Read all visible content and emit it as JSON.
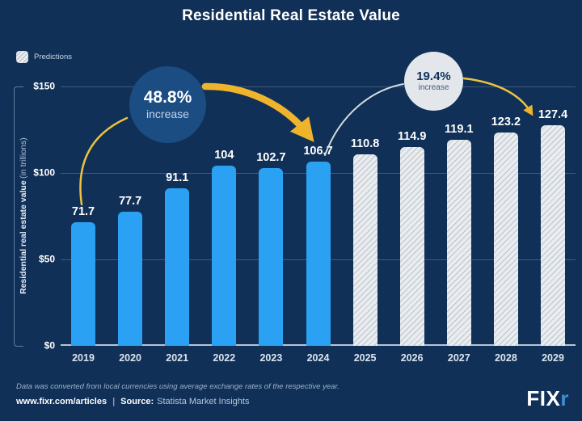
{
  "title": "Residential Real Estate Value",
  "legend": {
    "label": "Predictions"
  },
  "chart_data": {
    "type": "bar",
    "categories": [
      "2019",
      "2020",
      "2021",
      "2022",
      "2023",
      "2024",
      "2025",
      "2026",
      "2027",
      "2028",
      "2029"
    ],
    "values": [
      71.7,
      77.7,
      91.1,
      104,
      102.7,
      106.7,
      110.8,
      114.9,
      119.1,
      123.2,
      127.4
    ],
    "prediction_from_index": 6,
    "series": [
      {
        "name": "Actual",
        "categories": [
          "2019",
          "2020",
          "2021",
          "2022",
          "2023",
          "2024"
        ],
        "values": [
          71.7,
          77.7,
          91.1,
          104,
          102.7,
          106.7
        ]
      },
      {
        "name": "Predictions",
        "categories": [
          "2025",
          "2026",
          "2027",
          "2028",
          "2029"
        ],
        "values": [
          110.8,
          114.9,
          119.1,
          123.2,
          127.4
        ]
      }
    ],
    "title": "Residential Real Estate Value",
    "xlabel": "",
    "ylabel_bold": "Residential real estate value",
    "ylabel_light": "(in trillions)",
    "ylim": [
      0,
      150
    ],
    "yticks": [
      {
        "label": "$150",
        "value": 150
      },
      {
        "label": "$100",
        "value": 100
      },
      {
        "label": "$50",
        "value": 50
      },
      {
        "label": "$0",
        "value": 0
      }
    ],
    "grid": true,
    "legend_position": "top-left",
    "annotations": [
      {
        "text_main": "48.8%",
        "text_sub": "increase",
        "from": "2019",
        "to": "2024",
        "style": "dark-circle"
      },
      {
        "text_main": "19.4%",
        "text_sub": "increase",
        "from": "2024",
        "to": "2029",
        "style": "light-circle"
      }
    ]
  },
  "annotations": [
    {
      "text_main": "48.8%",
      "text_sub": "increase"
    },
    {
      "text_main": "19.4%",
      "text_sub": "increase"
    }
  ],
  "colors": {
    "background": "#103057",
    "bar_actual": "#2aa1f3",
    "bar_prediction": "#e9edf0",
    "annotation_dark_circle": "#1b4c82",
    "annotation_light_circle": "#e3e7eb",
    "arrow": "#f0b42c"
  },
  "footer": {
    "note": "Data was converted from local currencies using average exchange rates of the respective year.",
    "url": "www.fixr.com/articles",
    "divider": "|",
    "source_label": "Source:",
    "source_value": "Statista Market Insights"
  },
  "logo": {
    "text": "FIX",
    "accent": "r"
  }
}
